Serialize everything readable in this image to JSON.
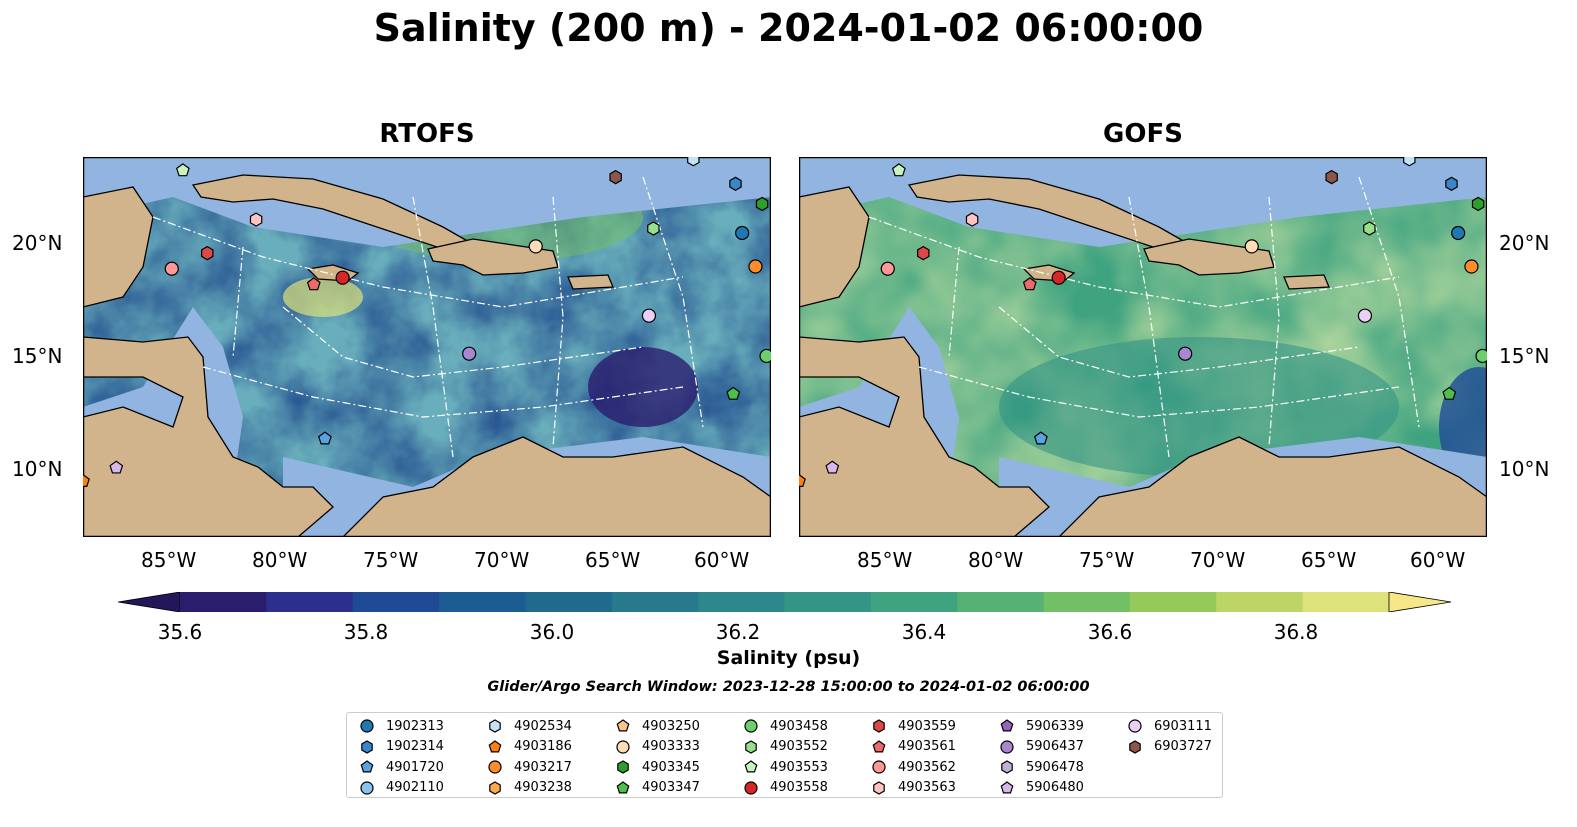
{
  "title": "Salinity (200 m) - 2024-01-02 06:00:00",
  "panels": [
    {
      "title": "RTOFS"
    },
    {
      "title": "GOFS"
    }
  ],
  "axes": {
    "lon_ticks": [
      "85°W",
      "80°W",
      "75°W",
      "70°W",
      "65°W",
      "60°W"
    ],
    "lat_ticks": [
      "20°N",
      "15°N",
      "10°N"
    ],
    "lon_range": [
      -89,
      -58
    ],
    "lat_range": [
      7,
      24
    ]
  },
  "colorbar": {
    "label": "Salinity (psu)",
    "ticks": [
      "35.6",
      "35.8",
      "36.0",
      "36.2",
      "36.4",
      "36.6",
      "36.8"
    ],
    "range": [
      35.55,
      36.95
    ],
    "extend": "both",
    "colors": [
      "#2a1d6e",
      "#2d2f8c",
      "#1f4b96",
      "#1b5d93",
      "#206a8d",
      "#277a8c",
      "#2c888a",
      "#349586",
      "#3fa380",
      "#55b174",
      "#72bf66",
      "#95ca5a",
      "#bcd564",
      "#dde27a"
    ],
    "under_color": "#24165a",
    "over_color": "#f7e788"
  },
  "search_window": "Glider/Argo Search Window: 2023-12-28 15:00:00 to 2024-01-02 06:00:00",
  "land_color": "#d2b48c",
  "shelf_color": "#92b4e0",
  "legend": [
    {
      "id": "1902313",
      "marker": "circle",
      "color": "#1f77b4"
    },
    {
      "id": "1902314",
      "marker": "hexagon",
      "color": "#3a86c8"
    },
    {
      "id": "4901720",
      "marker": "pentagon",
      "color": "#5aa3e0"
    },
    {
      "id": "4902110",
      "marker": "circle",
      "color": "#8cc2ef"
    },
    {
      "id": "4902534",
      "marker": "hexagon",
      "color": "#c5e3f7"
    },
    {
      "id": "4903186",
      "marker": "pentagon",
      "color": "#ff7f0e"
    },
    {
      "id": "4903217",
      "marker": "circle",
      "color": "#ff8c2a"
    },
    {
      "id": "4903238",
      "marker": "hexagon",
      "color": "#ffa94d"
    },
    {
      "id": "4903250",
      "marker": "pentagon",
      "color": "#ffc48a"
    },
    {
      "id": "4903333",
      "marker": "circle",
      "color": "#ffdcb8"
    },
    {
      "id": "4903345",
      "marker": "hexagon",
      "color": "#2ca02c"
    },
    {
      "id": "4903347",
      "marker": "pentagon",
      "color": "#4cbf4c"
    },
    {
      "id": "4903458",
      "marker": "circle",
      "color": "#6cce6c"
    },
    {
      "id": "4903552",
      "marker": "hexagon",
      "color": "#98df8a"
    },
    {
      "id": "4903553",
      "marker": "pentagon",
      "color": "#c8f2c0"
    },
    {
      "id": "4903558",
      "marker": "circle",
      "color": "#d62728"
    },
    {
      "id": "4903559",
      "marker": "hexagon",
      "color": "#e04848"
    },
    {
      "id": "4903561",
      "marker": "pentagon",
      "color": "#ec6a6a"
    },
    {
      "id": "4903562",
      "marker": "circle",
      "color": "#ff9896"
    },
    {
      "id": "4903563",
      "marker": "hexagon",
      "color": "#ffc4c2"
    },
    {
      "id": "5906339",
      "marker": "pentagon",
      "color": "#9467bd"
    },
    {
      "id": "5906437",
      "marker": "circle",
      "color": "#a886d0"
    },
    {
      "id": "5906478",
      "marker": "hexagon",
      "color": "#c5b0d5"
    },
    {
      "id": "5906480",
      "marker": "pentagon",
      "color": "#d6b8ea"
    },
    {
      "id": "6903111",
      "marker": "circle",
      "color": "#ead0f7"
    },
    {
      "id": "6903727",
      "marker": "hexagon",
      "color": "#8c564b"
    }
  ],
  "floats_on_map": [
    {
      "id": "4903553",
      "lon": -84.5,
      "lat": 23.4
    },
    {
      "id": "4902534",
      "lon": -61.5,
      "lat": 23.9
    },
    {
      "id": "6903727",
      "lon": -65.0,
      "lat": 23.1
    },
    {
      "id": "1902314",
      "lon": -59.6,
      "lat": 22.8
    },
    {
      "id": "4903345",
      "lon": -58.4,
      "lat": 21.9
    },
    {
      "id": "4903563",
      "lon": -81.2,
      "lat": 21.2
    },
    {
      "id": "4903552",
      "lon": -63.3,
      "lat": 20.8
    },
    {
      "id": "1902313",
      "lon": -59.3,
      "lat": 20.6
    },
    {
      "id": "4903333",
      "lon": -68.6,
      "lat": 20.0
    },
    {
      "id": "4903559",
      "lon": -83.4,
      "lat": 19.7
    },
    {
      "id": "4903562",
      "lon": -85.0,
      "lat": 19.0
    },
    {
      "id": "4903217",
      "lon": -58.7,
      "lat": 19.1
    },
    {
      "id": "4903558",
      "lon": -77.3,
      "lat": 18.6
    },
    {
      "id": "4903561",
      "lon": -78.6,
      "lat": 18.3
    },
    {
      "id": "6903111",
      "lon": -63.5,
      "lat": 16.9
    },
    {
      "id": "5906437",
      "lon": -71.6,
      "lat": 15.2
    },
    {
      "id": "4903458",
      "lon": -58.2,
      "lat": 15.1
    },
    {
      "id": "4903347",
      "lon": -59.7,
      "lat": 13.4
    },
    {
      "id": "4901720",
      "lon": -78.1,
      "lat": 11.4
    },
    {
      "id": "5906480",
      "lon": -87.5,
      "lat": 10.1
    },
    {
      "id": "4903186",
      "lon": -89.0,
      "lat": 9.5
    }
  ]
}
